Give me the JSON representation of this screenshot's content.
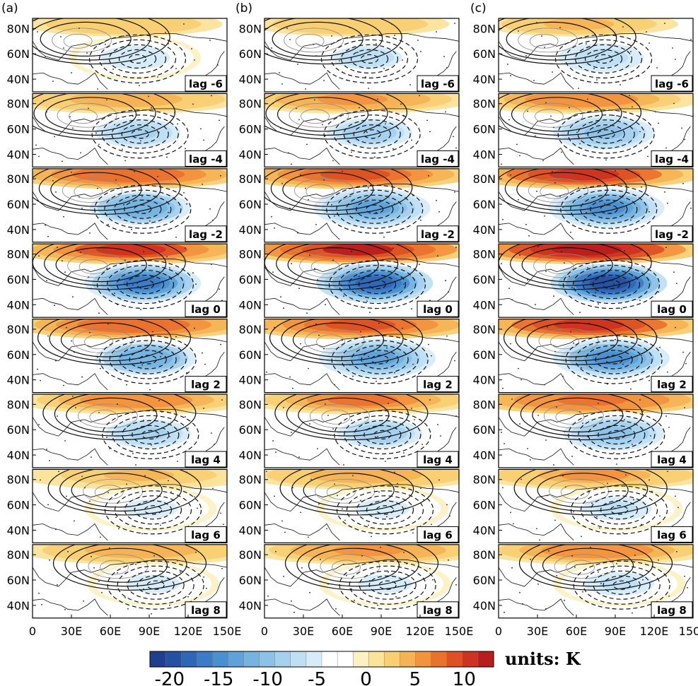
{
  "chart_data": {
    "type": "heatmap",
    "description_mode": "composite lagged maps",
    "panels": [
      {
        "label": "(a)"
      },
      {
        "label": "(b)"
      },
      {
        "label": "(c)"
      }
    ],
    "lags": [
      "lag -6",
      "lag -4",
      "lag -2",
      "lag 0",
      "lag 2",
      "lag 4",
      "lag 6",
      "lag 8"
    ],
    "lag_days": [
      -6,
      -4,
      -2,
      0,
      2,
      4,
      6,
      8
    ],
    "lat_ticks": [
      "80N",
      "60N",
      "40N"
    ],
    "lat_values": [
      80,
      60,
      40
    ],
    "lat_range": [
      30,
      88
    ],
    "lon_ticks": [
      "0",
      "30E",
      "60E",
      "90E",
      "120E",
      "150E"
    ],
    "lon_values": [
      0,
      30,
      60,
      90,
      120,
      150
    ],
    "lon_range": [
      0,
      150
    ],
    "colorbar": {
      "ticks": [
        "-20",
        "-15",
        "-10",
        "-5",
        "0",
        "5",
        "10"
      ],
      "tick_values": [
        -20,
        -15,
        -10,
        -5,
        0,
        5,
        10
      ],
      "range": [
        -22,
        13
      ],
      "units_label": "units: K",
      "colors": [
        "#1f3f8f",
        "#2551a3",
        "#2e66b8",
        "#3a7cc6",
        "#4a8fd0",
        "#5ea2d9",
        "#75b3e0",
        "#8cc2e7",
        "#a5d1ee",
        "#bedff4",
        "#d6ecf8",
        "#ffffff",
        "#ffffff",
        "#fdf1c4",
        "#fbe39a",
        "#f9cf73",
        "#f6b355",
        "#f2943f",
        "#ea722f",
        "#dd5124",
        "#cc3320",
        "#b81f1c"
      ]
    },
    "fields": {
      "cold_anomaly": {
        "lon": 85,
        "lat": 57,
        "peak_K": [
          -6,
          -8,
          -12,
          -16,
          -12,
          -8,
          -5,
          -5
        ]
      },
      "warm_arctic": {
        "lon": 70,
        "lat": 82,
        "peak_K": [
          3,
          5,
          8,
          10,
          8,
          6,
          4,
          5
        ]
      }
    }
  }
}
